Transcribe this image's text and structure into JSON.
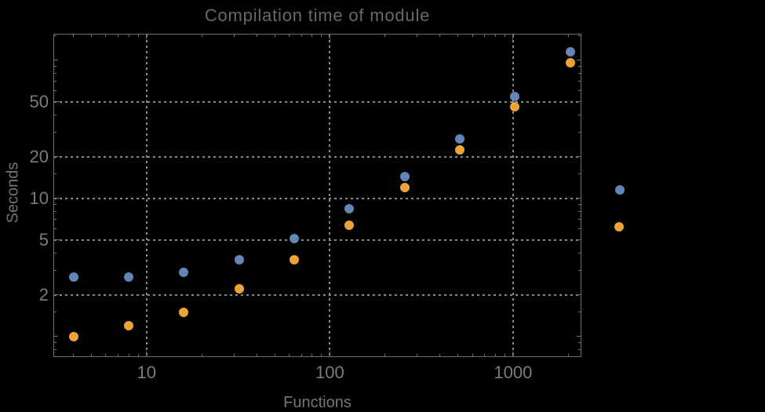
{
  "window": {
    "background": "#000000"
  },
  "colors": {
    "background": "#000000",
    "frame": "#6e6e6e",
    "grid": "#8a8a8a",
    "tick_label": "#7b7b7b",
    "axis_label": "#757575",
    "title": "#696969",
    "series1": "#6286b8",
    "series2": "#eca437"
  },
  "chart_data": {
    "type": "scatter",
    "title": "Compilation time of module",
    "xlabel": "Functions",
    "ylabel": "Seconds",
    "xscale": "log",
    "yscale": "log",
    "xlim": [
      3.1,
      2360
    ],
    "ylim": [
      0.71,
      155
    ],
    "grid": "dotted",
    "x_ticks": {
      "major": [
        10,
        100,
        1000
      ],
      "minor": [
        4,
        5,
        6,
        7,
        8,
        9,
        20,
        30,
        40,
        50,
        60,
        70,
        80,
        90,
        200,
        300,
        400,
        500,
        600,
        700,
        800,
        900,
        2000
      ]
    },
    "y_ticks": {
      "major": [
        2,
        5,
        10,
        20,
        50
      ],
      "medium": [
        1,
        100
      ],
      "minor": [
        0.8,
        0.9,
        1.5,
        3,
        4,
        6,
        7,
        8,
        9,
        15,
        30,
        40,
        60,
        70,
        80,
        90,
        150
      ]
    },
    "x": [
      4,
      8,
      16,
      32,
      64,
      128,
      256,
      512,
      1024,
      2048
    ],
    "series": [
      {
        "name": "series-1-blue",
        "color": "#6286b8",
        "values": [
          2.7,
          2.7,
          2.9,
          3.6,
          5.1,
          8.4,
          14.4,
          27,
          54.5,
          115
        ]
      },
      {
        "name": "series-2-orange",
        "color": "#eca437",
        "values": [
          1.0,
          1.2,
          1.5,
          2.2,
          3.6,
          6.4,
          11.9,
          22.5,
          46,
          96
        ]
      }
    ],
    "legend": {
      "position": "outside-right",
      "labels_visible": false,
      "markers": [
        {
          "series": "series-1-blue",
          "color": "#6286b8"
        },
        {
          "series": "series-2-orange",
          "color": "#eca437"
        }
      ]
    }
  }
}
